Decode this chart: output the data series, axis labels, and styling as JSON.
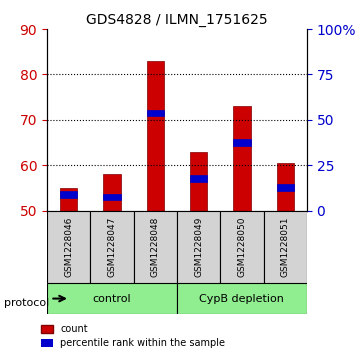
{
  "title": "GDS4828 / ILMN_1751625",
  "samples": [
    "GSM1228046",
    "GSM1228047",
    "GSM1228048",
    "GSM1228049",
    "GSM1228050",
    "GSM1228051"
  ],
  "red_values": [
    55.0,
    58.0,
    83.0,
    63.0,
    73.0,
    60.5
  ],
  "blue_values": [
    53.5,
    53.0,
    71.5,
    57.0,
    65.0,
    55.0
  ],
  "baseline": 50,
  "ylim_left": [
    50,
    90
  ],
  "ylim_right": [
    0,
    100
  ],
  "yticks_left": [
    50,
    60,
    70,
    80,
    90
  ],
  "yticks_right": [
    0,
    25,
    50,
    75,
    100
  ],
  "ytick_labels_right": [
    "0",
    "25",
    "50",
    "75",
    "100%"
  ],
  "groups": [
    {
      "label": "control",
      "indices": [
        0,
        1,
        2
      ],
      "color": "#90ee90"
    },
    {
      "label": "CypB depletion",
      "indices": [
        3,
        4,
        5
      ],
      "color": "#90ee90"
    }
  ],
  "protocol_label": "protocol",
  "bar_width": 0.4,
  "red_color": "#cc0000",
  "blue_color": "#0000cc",
  "grid_color": "#000000",
  "left_tick_color": "#cc0000",
  "right_tick_color": "#0000cc",
  "sample_area_color": "#d3d3d3",
  "bar_border_color": "#800000",
  "blue_bar_height": 1.5
}
